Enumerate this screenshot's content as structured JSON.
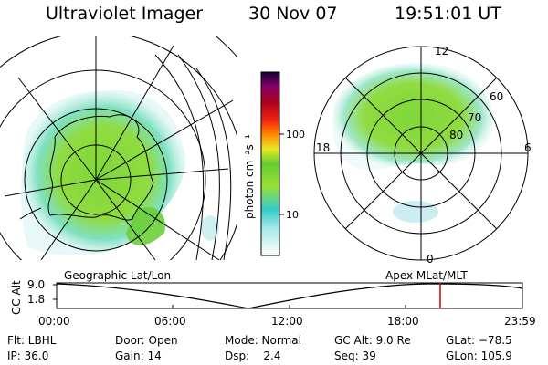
{
  "header": {
    "title": "Ultraviolet Imager",
    "date": "30 Nov 07",
    "time": "19:51:01 UT"
  },
  "colorbar": {
    "label": "photon cm⁻²s⁻¹",
    "ticks": [
      "100",
      "10"
    ]
  },
  "polar_plot": {
    "labels": {
      "top": "12",
      "left": "18",
      "right": "6",
      "bottom": "0"
    },
    "lat_labels": [
      "60",
      "70",
      "80"
    ]
  },
  "strip": {
    "left_title": "Geographic Lat/Lon",
    "right_title": "Apex MLat/MLT",
    "axis_label": "GC Alt",
    "y_ticks": [
      "9.0",
      "1.8"
    ],
    "time_ticks": [
      "00:00",
      "06:00",
      "12:00",
      "18:00",
      "23:59"
    ]
  },
  "info": {
    "filter": "Flt: LBHL",
    "door": "Door: Open",
    "mode": "Mode: Normal",
    "gc_alt": "GC Alt: 9.0 Re",
    "glat": "GLat: −78.5",
    "ip": "IP: 36.0",
    "gain": "Gain: 14",
    "dsp": "Dsp:    2.4",
    "seq": "Seq: 39",
    "glon": "GLon: 105.9"
  }
}
